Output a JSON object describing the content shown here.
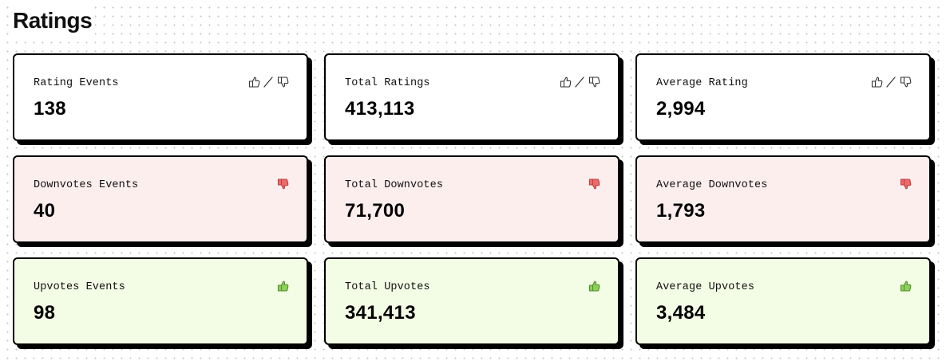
{
  "page": {
    "title": "Ratings"
  },
  "colors": {
    "neutral_bg": "#ffffff",
    "downvote_bg": "#fdeeee",
    "upvote_bg": "#f3fce4",
    "downvote_icon": "#f06a6a",
    "upvote_icon": "#8ed15a",
    "border": "#000000"
  },
  "rows": [
    {
      "tone": "neutral",
      "icon": "thumbs-up-slash-thumbs-down-icon",
      "cards": [
        {
          "label": "Rating Events",
          "value": "138"
        },
        {
          "label": "Total Ratings",
          "value": "413,113"
        },
        {
          "label": "Average Rating",
          "value": "2,994"
        }
      ]
    },
    {
      "tone": "down",
      "icon": "thumbs-down-icon",
      "cards": [
        {
          "label": "Downvotes Events",
          "value": "40"
        },
        {
          "label": "Total Downvotes",
          "value": "71,700"
        },
        {
          "label": "Average Downvotes",
          "value": "1,793"
        }
      ]
    },
    {
      "tone": "up",
      "icon": "thumbs-up-icon",
      "cards": [
        {
          "label": "Upvotes Events",
          "value": "98"
        },
        {
          "label": "Total Upvotes",
          "value": "341,413"
        },
        {
          "label": "Average Upvotes",
          "value": "3,484"
        }
      ]
    }
  ]
}
